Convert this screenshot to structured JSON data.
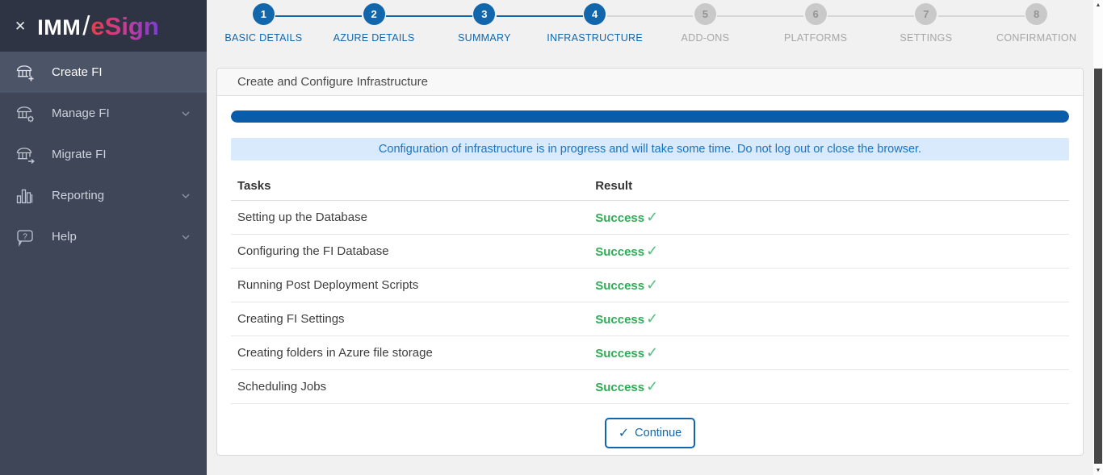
{
  "logo": {
    "imm": "IMM",
    "slash": "/",
    "esign": "eSign"
  },
  "icons": {
    "close": "✕",
    "success_check": "✓",
    "continue_check": "✓",
    "scroll_up": "▲",
    "scroll_down": "▼"
  },
  "sidebar": {
    "items": [
      {
        "label": "Create FI",
        "icon": "bank-plus-icon",
        "active": true,
        "has_chevron": false
      },
      {
        "label": "Manage FI",
        "icon": "bank-gear-icon",
        "active": false,
        "has_chevron": true
      },
      {
        "label": "Migrate FI",
        "icon": "bank-arrow-icon",
        "active": false,
        "has_chevron": false
      },
      {
        "label": "Reporting",
        "icon": "bar-chart-icon",
        "active": false,
        "has_chevron": true
      },
      {
        "label": "Help",
        "icon": "help-bubble-icon",
        "active": false,
        "has_chevron": true
      }
    ]
  },
  "stepper": {
    "steps": [
      {
        "number": "1",
        "label": "BASIC DETAILS",
        "state": "done"
      },
      {
        "number": "2",
        "label": "AZURE DETAILS",
        "state": "done"
      },
      {
        "number": "3",
        "label": "SUMMARY",
        "state": "done"
      },
      {
        "number": "4",
        "label": "INFRASTRUCTURE",
        "state": "done"
      },
      {
        "number": "5",
        "label": "ADD-ONS",
        "state": "todo"
      },
      {
        "number": "6",
        "label": "PLATFORMS",
        "state": "todo"
      },
      {
        "number": "7",
        "label": "SETTINGS",
        "state": "todo"
      },
      {
        "number": "8",
        "label": "CONFIRMATION",
        "state": "todo"
      }
    ]
  },
  "panel": {
    "title": "Create and Configure Infrastructure",
    "progress_percent": 100,
    "alert": "Configuration of infrastructure is in progress and will take some time. Do not log out or close the browser.",
    "table": {
      "headers": [
        "Tasks",
        "Result"
      ],
      "rows": [
        {
          "task": "Setting up the Database",
          "result": "Success"
        },
        {
          "task": "Configuring the FI Database",
          "result": "Success"
        },
        {
          "task": "Running Post Deployment Scripts",
          "result": "Success"
        },
        {
          "task": "Creating FI Settings",
          "result": "Success"
        },
        {
          "task": "Creating folders in Azure file storage",
          "result": "Success"
        },
        {
          "task": "Scheduling Jobs",
          "result": "Success"
        }
      ]
    },
    "continue_label": "Continue"
  },
  "colors": {
    "accent_blue": "#1266ab",
    "progress_blue": "#0b5ca8",
    "alert_bg": "#d8eafc",
    "alert_text": "#1b73c2",
    "success_green": "#2dad55",
    "sidebar_bg": "#3e4657",
    "sidebar_header_bg": "#2e3444",
    "sidebar_active_bg": "#4c5468",
    "page_bg": "#f1f1f1"
  }
}
